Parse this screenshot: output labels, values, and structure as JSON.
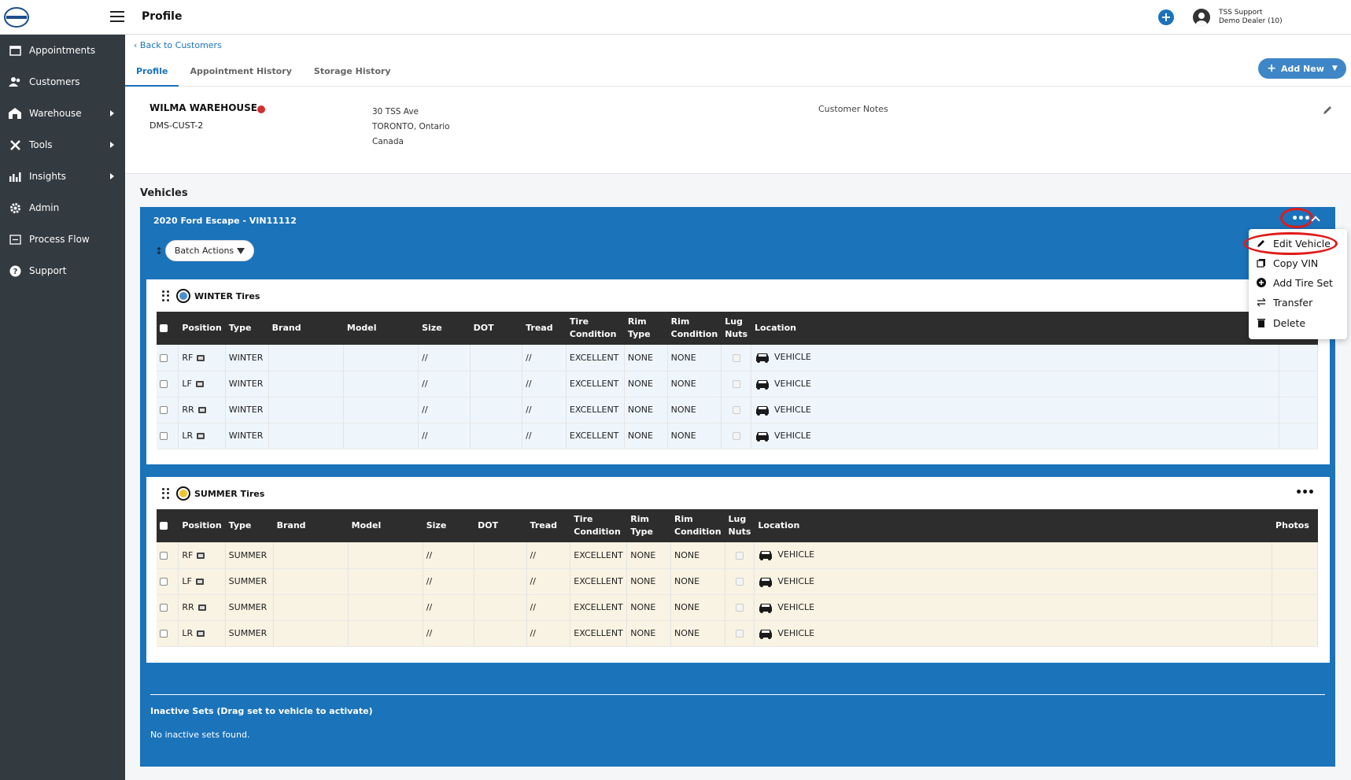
{
  "header": {
    "page_title": "Profile",
    "user_name": "TSS Support",
    "dealer": "Demo Dealer (10)"
  },
  "sidebar": {
    "items": [
      {
        "label": "Appointments",
        "icon": "calendar-icon"
      },
      {
        "label": "Customers",
        "icon": "users-icon"
      },
      {
        "label": "Warehouse",
        "icon": "warehouse-icon"
      },
      {
        "label": "Tools",
        "icon": "tools-icon"
      },
      {
        "label": "Insights",
        "icon": "chart-icon"
      },
      {
        "label": "Admin",
        "icon": "gear-icon"
      },
      {
        "label": "Process Flow",
        "icon": "process-flow-icon"
      },
      {
        "label": "Support",
        "icon": "help-icon"
      }
    ]
  },
  "nav": {
    "back_label": "Back to Customers",
    "tabs": [
      "Profile",
      "Appointment History",
      "Storage History"
    ],
    "add_new_label": "Add New"
  },
  "customer": {
    "name": "WILMA WAREHOUSE",
    "id": "DMS-CUST-2",
    "address_line1": "30 TSS Ave",
    "address_line2": "TORONTO, Ontario",
    "address_line3": "Canada",
    "notes_label": "Customer Notes"
  },
  "vehicles": {
    "section_title": "Vehicles",
    "vehicle_title": "2020 Ford Escape - VIN11112",
    "batch_actions_label": "Batch Actions"
  },
  "menu": {
    "items": [
      "Edit Vehicle",
      "Copy VIN",
      "Add Tire Set",
      "Transfer",
      "Delete"
    ]
  },
  "table_headers": {
    "position": "Position",
    "type": "Type",
    "brand": "Brand",
    "model": "Model",
    "size": "Size",
    "dot": "DOT",
    "tread": "Tread",
    "tire": "Tire",
    "condition": "Condition",
    "rim": "Rim",
    "rim_type": "Type",
    "rim_condition": "Condition",
    "lug": "Lug",
    "nuts": "Nuts",
    "location": "Location",
    "photos": "Photos"
  },
  "winter": {
    "title": "WINTER Tires",
    "rows": [
      {
        "position": "RF",
        "type": "WINTER",
        "brand": "",
        "model": "",
        "size": "//",
        "dot": "",
        "tread": "//",
        "tire_condition": "EXCELLENT",
        "rim_type": "NONE",
        "rim_condition": "NONE",
        "location": "VEHICLE"
      },
      {
        "position": "LF",
        "type": "WINTER",
        "brand": "",
        "model": "",
        "size": "//",
        "dot": "",
        "tread": "//",
        "tire_condition": "EXCELLENT",
        "rim_type": "NONE",
        "rim_condition": "NONE",
        "location": "VEHICLE"
      },
      {
        "position": "RR",
        "type": "WINTER",
        "brand": "",
        "model": "",
        "size": "//",
        "dot": "",
        "tread": "//",
        "tire_condition": "EXCELLENT",
        "rim_type": "NONE",
        "rim_condition": "NONE",
        "location": "VEHICLE"
      },
      {
        "position": "LR",
        "type": "WINTER",
        "brand": "",
        "model": "",
        "size": "//",
        "dot": "",
        "tread": "//",
        "tire_condition": "EXCELLENT",
        "rim_type": "NONE",
        "rim_condition": "NONE",
        "location": "VEHICLE"
      }
    ]
  },
  "summer": {
    "title": "SUMMER Tires",
    "rows": [
      {
        "position": "RF",
        "type": "SUMMER",
        "brand": "",
        "model": "",
        "size": "//",
        "dot": "",
        "tread": "//",
        "tire_condition": "EXCELLENT",
        "rim_type": "NONE",
        "rim_condition": "NONE",
        "location": "VEHICLE"
      },
      {
        "position": "LF",
        "type": "SUMMER",
        "brand": "",
        "model": "",
        "size": "//",
        "dot": "",
        "tread": "//",
        "tire_condition": "EXCELLENT",
        "rim_type": "NONE",
        "rim_condition": "NONE",
        "location": "VEHICLE"
      },
      {
        "position": "RR",
        "type": "SUMMER",
        "brand": "",
        "model": "",
        "size": "//",
        "dot": "",
        "tread": "//",
        "tire_condition": "EXCELLENT",
        "rim_type": "NONE",
        "rim_condition": "NONE",
        "location": "VEHICLE"
      },
      {
        "position": "LR",
        "type": "SUMMER",
        "brand": "",
        "model": "",
        "size": "//",
        "dot": "",
        "tread": "//",
        "tire_condition": "EXCELLENT",
        "rim_type": "NONE",
        "rim_condition": "NONE",
        "location": "VEHICLE"
      }
    ]
  },
  "inactive": {
    "title": "Inactive Sets (Drag set to vehicle to activate)",
    "empty_text": "No inactive sets found."
  },
  "colors": {
    "accent": "#1b73ba",
    "sidebar": "#333a40",
    "highlight_ring": "#e01b1b",
    "winter_row": "#eef6fc",
    "summer_row": "#f9f3e3"
  }
}
